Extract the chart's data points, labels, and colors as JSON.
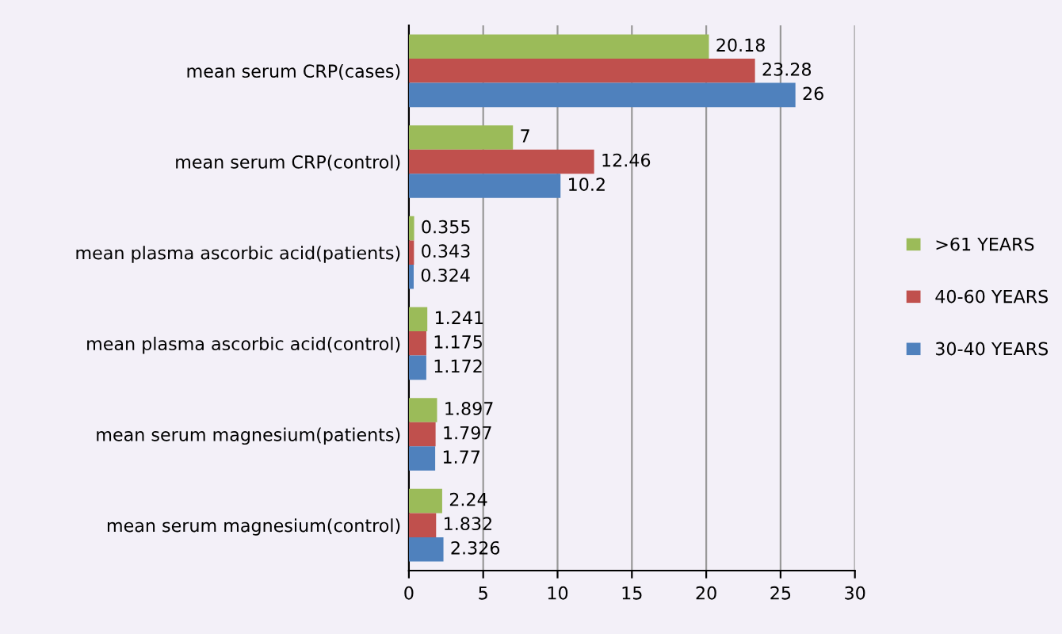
{
  "chart_data": {
    "type": "bar",
    "orientation": "horizontal",
    "categories": [
      "mean serum CRP(cases)",
      "mean serum CRP(control)",
      "mean plasma ascorbic acid(patients)",
      "mean plasma ascorbic acid(control)",
      "mean serum magnesium(patients)",
      "mean serum magnesium(control)"
    ],
    "series": [
      {
        "name": ">61 YEARS",
        "color": "#9bbb59",
        "values": [
          20.18,
          7,
          0.355,
          1.241,
          1.897,
          2.24
        ]
      },
      {
        "name": "40-60 YEARS",
        "color": "#c0504d",
        "values": [
          23.28,
          12.46,
          0.343,
          1.175,
          1.797,
          1.832
        ]
      },
      {
        "name": "30-40 YEARS",
        "color": "#4f81bd",
        "values": [
          26,
          10.2,
          0.324,
          1.172,
          1.77,
          2.326
        ]
      }
    ],
    "xlim": [
      0,
      30
    ],
    "xticks": [
      0,
      5,
      10,
      15,
      20,
      25,
      30
    ],
    "grid": "x",
    "legend": "right",
    "data_labels": true
  }
}
